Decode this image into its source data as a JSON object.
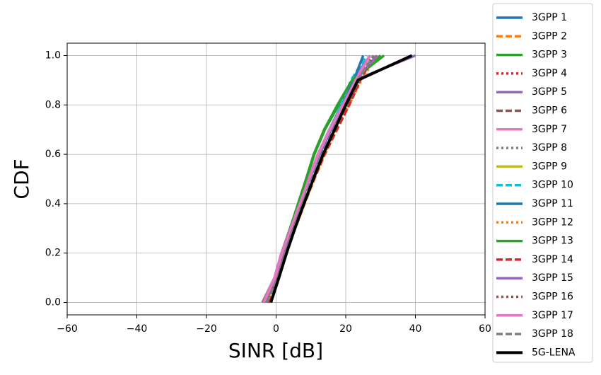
{
  "chart_data": {
    "type": "line",
    "xlabel": "SINR [dB]",
    "ylabel": "CDF",
    "xlim": [
      -60,
      60
    ],
    "ylim": [
      -0.05,
      1.05
    ],
    "xticks": [
      {
        "value": -60,
        "label": "−60"
      },
      {
        "value": -40,
        "label": "−40"
      },
      {
        "value": -20,
        "label": "−20"
      },
      0,
      20,
      40,
      60
    ],
    "yticks": [
      {
        "value": 0,
        "label": "0.0"
      },
      0.2,
      0.4,
      0.6,
      0.8,
      {
        "value": 1,
        "label": "1.0"
      }
    ],
    "grid": true,
    "legend": "outside right",
    "series": [
      {
        "name": "3GPP 1",
        "color": "#1f77b4",
        "linestyle": "solid",
        "x": [
          -3,
          0.3,
          2.3,
          4.8,
          7.2,
          9.6,
          12,
          15.3,
          18.8,
          22,
          27
        ],
        "values": [
          0,
          0.1,
          0.2,
          0.3,
          0.4,
          0.5,
          0.6,
          0.7,
          0.8,
          0.9,
          1
        ]
      },
      {
        "name": "3GPP 2",
        "color": "#ff7f0e",
        "linestyle": "dashed",
        "x": [
          -2.5,
          0.8,
          3,
          5.5,
          8.2,
          11,
          14,
          17.5,
          21,
          24,
          28
        ],
        "values": [
          0,
          0.1,
          0.2,
          0.3,
          0.4,
          0.5,
          0.6,
          0.7,
          0.8,
          0.9,
          1
        ]
      },
      {
        "name": "3GPP 3",
        "color": "#2ca02c",
        "linestyle": "solid",
        "x": [
          -3.5,
          0,
          1.8,
          4.2,
          6.5,
          8.8,
          11,
          14,
          18,
          22,
          30
        ],
        "values": [
          0,
          0.1,
          0.2,
          0.3,
          0.4,
          0.5,
          0.6,
          0.7,
          0.8,
          0.9,
          1
        ]
      },
      {
        "name": "3GPP 4",
        "color": "#d62728",
        "linestyle": "dotted",
        "x": [
          -2,
          0.5,
          2.6,
          5.2,
          7.8,
          10.5,
          13.5,
          17,
          20.5,
          23.5,
          27
        ],
        "values": [
          0,
          0.1,
          0.2,
          0.3,
          0.4,
          0.5,
          0.6,
          0.7,
          0.8,
          0.9,
          1
        ]
      },
      {
        "name": "3GPP 5",
        "color": "#9467bd",
        "linestyle": "solid",
        "x": [
          -3,
          0.2,
          2.2,
          4.6,
          7,
          9.5,
          12.2,
          15.5,
          19,
          22.5,
          40
        ],
        "values": [
          0,
          0.1,
          0.2,
          0.3,
          0.4,
          0.5,
          0.6,
          0.7,
          0.8,
          0.9,
          1
        ]
      },
      {
        "name": "3GPP 6",
        "color": "#8c564b",
        "linestyle": "dashed",
        "x": [
          -2.2,
          0.6,
          2.8,
          5.3,
          8,
          10.8,
          13.6,
          17,
          20.5,
          24,
          28
        ],
        "values": [
          0,
          0.1,
          0.2,
          0.3,
          0.4,
          0.5,
          0.6,
          0.7,
          0.8,
          0.9,
          1
        ]
      },
      {
        "name": "3GPP 7",
        "color": "#e377c2",
        "linestyle": "solid",
        "x": [
          -4,
          -0.5,
          1.5,
          4,
          6.6,
          9.3,
          12,
          15.3,
          19,
          22.5,
          27
        ],
        "values": [
          0,
          0.1,
          0.2,
          0.3,
          0.4,
          0.5,
          0.6,
          0.7,
          0.8,
          0.9,
          1
        ]
      },
      {
        "name": "3GPP 8",
        "color": "#7f7f7f",
        "linestyle": "dotted",
        "x": [
          -2.5,
          0.5,
          2.6,
          5,
          7.6,
          10.4,
          13.2,
          16.6,
          20,
          23.5,
          28
        ],
        "values": [
          0,
          0.1,
          0.2,
          0.3,
          0.4,
          0.5,
          0.6,
          0.7,
          0.8,
          0.9,
          1
        ]
      },
      {
        "name": "3GPP 9",
        "color": "#bcbd22",
        "linestyle": "solid",
        "x": [
          -3,
          0.2,
          2.2,
          4.6,
          7.1,
          9.7,
          12.4,
          15.8,
          19.5,
          23,
          29
        ],
        "values": [
          0,
          0.1,
          0.2,
          0.3,
          0.4,
          0.5,
          0.6,
          0.7,
          0.8,
          0.9,
          1
        ]
      },
      {
        "name": "3GPP 10",
        "color": "#17becf",
        "linestyle": "dashed",
        "x": [
          -2.8,
          0.3,
          2.4,
          4.8,
          7.4,
          10,
          12.6,
          15.6,
          18.6,
          21.5,
          26
        ],
        "values": [
          0,
          0.1,
          0.2,
          0.3,
          0.4,
          0.5,
          0.6,
          0.7,
          0.8,
          0.9,
          1
        ]
      },
      {
        "name": "3GPP 11",
        "color": "#1f77b4",
        "linestyle": "solid",
        "x": [
          -3.2,
          0.1,
          2.1,
          4.5,
          7,
          9.6,
          12.4,
          15.8,
          19.2,
          22.3,
          25
        ],
        "values": [
          0,
          0.1,
          0.2,
          0.3,
          0.4,
          0.5,
          0.6,
          0.7,
          0.8,
          0.9,
          1
        ]
      },
      {
        "name": "3GPP 12",
        "color": "#ff7f0e",
        "linestyle": "dotted",
        "x": [
          -2.3,
          0.7,
          2.9,
          5.4,
          8.1,
          10.9,
          13.8,
          17.3,
          21,
          24.5,
          29
        ],
        "values": [
          0,
          0.1,
          0.2,
          0.3,
          0.4,
          0.5,
          0.6,
          0.7,
          0.8,
          0.9,
          1
        ]
      },
      {
        "name": "3GPP 13",
        "color": "#2ca02c",
        "linestyle": "solid",
        "x": [
          -3.8,
          -0.2,
          1.7,
          4,
          6.3,
          8.6,
          10.8,
          13.8,
          17.6,
          21.8,
          31
        ],
        "values": [
          0,
          0.1,
          0.2,
          0.3,
          0.4,
          0.5,
          0.6,
          0.7,
          0.8,
          0.9,
          1
        ]
      },
      {
        "name": "3GPP 14",
        "color": "#d62728",
        "linestyle": "dashed",
        "x": [
          -2.4,
          0.6,
          2.8,
          5.3,
          8,
          10.9,
          13.9,
          17.4,
          21,
          24.2,
          28
        ],
        "values": [
          0,
          0.1,
          0.2,
          0.3,
          0.4,
          0.5,
          0.6,
          0.7,
          0.8,
          0.9,
          1
        ]
      },
      {
        "name": "3GPP 15",
        "color": "#9467bd",
        "linestyle": "solid",
        "x": [
          -3.3,
          0.1,
          2.1,
          4.5,
          6.9,
          9.5,
          12.2,
          15.6,
          19.3,
          22.8,
          29
        ],
        "values": [
          0,
          0.1,
          0.2,
          0.3,
          0.4,
          0.5,
          0.6,
          0.7,
          0.8,
          0.9,
          1
        ]
      },
      {
        "name": "3GPP 16",
        "color": "#8c564b",
        "linestyle": "dotted",
        "x": [
          -2.6,
          0.4,
          2.6,
          5.1,
          7.8,
          10.6,
          13.5,
          17,
          20.6,
          24,
          28
        ],
        "values": [
          0,
          0.1,
          0.2,
          0.3,
          0.4,
          0.5,
          0.6,
          0.7,
          0.8,
          0.9,
          1
        ]
      },
      {
        "name": "3GPP 17",
        "color": "#e377c2",
        "linestyle": "solid",
        "x": [
          -3.6,
          -0.3,
          1.7,
          4.2,
          6.8,
          9.5,
          12.2,
          15.5,
          19.2,
          22.8,
          27
        ],
        "values": [
          0,
          0.1,
          0.2,
          0.3,
          0.4,
          0.5,
          0.6,
          0.7,
          0.8,
          0.9,
          1
        ]
      },
      {
        "name": "3GPP 18",
        "color": "#7f7f7f",
        "linestyle": "dashed",
        "x": [
          -2.7,
          0.4,
          2.5,
          5,
          7.6,
          10.3,
          13.1,
          16.5,
          20,
          23.4,
          28
        ],
        "values": [
          0,
          0.1,
          0.2,
          0.3,
          0.4,
          0.5,
          0.6,
          0.7,
          0.8,
          0.9,
          1
        ]
      },
      {
        "name": "5G-LENA",
        "color": "#000000",
        "linestyle": "solid",
        "x": [
          -1.5,
          0.8,
          3,
          5.4,
          8,
          10.7,
          13.5,
          16.8,
          20,
          23.5,
          39
        ],
        "values": [
          0,
          0.1,
          0.2,
          0.3,
          0.4,
          0.5,
          0.6,
          0.7,
          0.8,
          0.9,
          1
        ]
      }
    ]
  }
}
